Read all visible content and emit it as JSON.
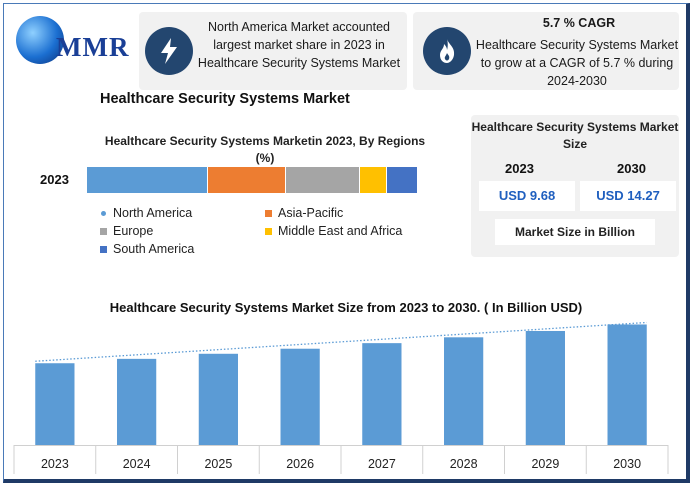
{
  "brand": {
    "name": "MMR"
  },
  "cards": [
    {
      "text": "North America Market accounted largest market share in 2023 in Healthcare Security Systems Market",
      "icon": "lightning-icon"
    },
    {
      "heading": "5.7 % CAGR",
      "text": "Healthcare Security Systems Market to grow at a CAGR of 5.7 % during 2024-2030",
      "icon": "flame-icon"
    }
  ],
  "main_title": "Healthcare Security Systems Market",
  "region_chart": {
    "title": "Healthcare Security Systems Marketin 2023, By Regions (%)",
    "year": "2023",
    "legend": [
      {
        "name": "North America",
        "color": "#5b9bd5"
      },
      {
        "name": "Asia-Pacific",
        "color": "#ed7d31"
      },
      {
        "name": "Europe",
        "color": "#a5a5a5"
      },
      {
        "name": "Middle East and Africa",
        "color": "#ffc000"
      },
      {
        "name": "South America",
        "color": "#4472c4"
      }
    ]
  },
  "market_size": {
    "title": "Healthcare Security Systems Market Size",
    "year_start": "2023",
    "year_end": "2030",
    "value_start": "USD 9.68",
    "value_end": "USD 14.27",
    "unit_label": "Market Size in Billion"
  },
  "chart_data": [
    {
      "type": "bar",
      "stacked": true,
      "orientation": "horizontal",
      "title": "Healthcare Security Systems Marketin 2023, By Regions (%)",
      "categories": [
        "2023"
      ],
      "series": [
        {
          "name": "North America",
          "values": [
            36.5
          ]
        },
        {
          "name": "Asia-Pacific",
          "values": [
            23.5
          ]
        },
        {
          "name": "Europe",
          "values": [
            22.5
          ]
        },
        {
          "name": "Middle East and Africa",
          "values": [
            8
          ]
        },
        {
          "name": "South America",
          "values": [
            9.5
          ]
        }
      ],
      "legend_position": "bottom"
    },
    {
      "type": "bar",
      "title": "Healthcare Security Systems Market Size from 2023 to 2030. ( In Billion  USD)",
      "categories": [
        "2023",
        "2024",
        "2025",
        "2026",
        "2027",
        "2028",
        "2029",
        "2030"
      ],
      "values": [
        9.68,
        10.2,
        10.8,
        11.4,
        12.06,
        12.75,
        13.5,
        14.27
      ],
      "trendline": true,
      "ylim": [
        0,
        14.8
      ],
      "color": "#5b9bd5",
      "grid": false
    }
  ]
}
